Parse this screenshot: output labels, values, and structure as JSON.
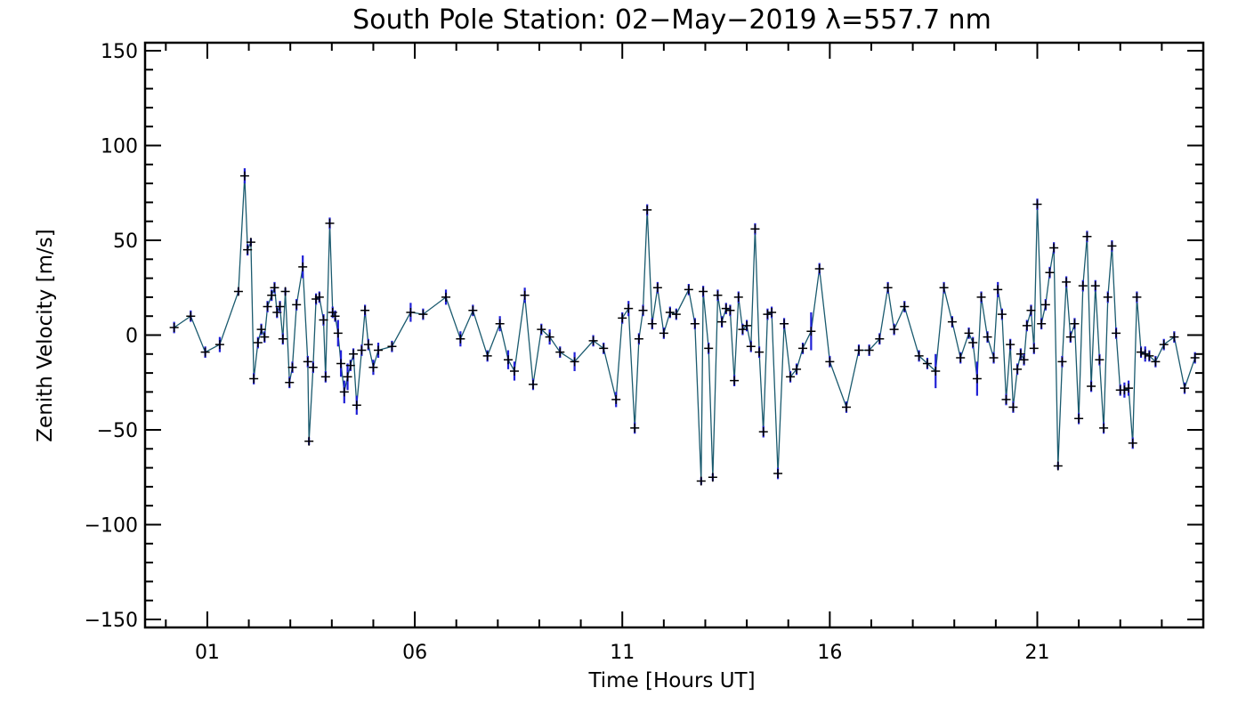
{
  "chart_data": {
    "type": "line",
    "title": "South Pole Station: 02−May−2019 λ=557.7 nm",
    "xlabel": "Time [Hours UT]",
    "ylabel": "Zenith Velocity [m/s]",
    "xlim": [
      -0.5,
      25.0
    ],
    "ylim": [
      -150,
      150
    ],
    "xtick_labels": [
      {
        "value": 1,
        "label": "01"
      },
      {
        "value": 6,
        "label": "06"
      },
      {
        "value": 11,
        "label": "11"
      },
      {
        "value": 16,
        "label": "16"
      },
      {
        "value": 21,
        "label": "21"
      }
    ],
    "ytick_labels": [
      {
        "value": 150,
        "label": "150"
      },
      {
        "value": 100,
        "label": "100"
      },
      {
        "value": 50,
        "label": "50"
      },
      {
        "value": 0,
        "label": "0"
      },
      {
        "value": -50,
        "label": "−50"
      },
      {
        "value": -100,
        "label": "−100"
      },
      {
        "value": -150,
        "label": "−150"
      }
    ],
    "series": [
      {
        "line_color": "#1a5a6e",
        "marker": "+",
        "errorbar_color": "#1f1fd6",
        "points": [
          {
            "x": 0.2,
            "y": 4,
            "err": 3
          },
          {
            "x": 0.6,
            "y": 10,
            "err": 3
          },
          {
            "x": 0.95,
            "y": -9,
            "err": 3
          },
          {
            "x": 1.3,
            "y": -5,
            "err": 4
          },
          {
            "x": 1.75,
            "y": 23,
            "err": 2
          },
          {
            "x": 1.9,
            "y": 84,
            "err": 4
          },
          {
            "x": 1.97,
            "y": 45,
            "err": 3
          },
          {
            "x": 2.05,
            "y": 49,
            "err": 2
          },
          {
            "x": 2.12,
            "y": -23,
            "err": 3
          },
          {
            "x": 2.22,
            "y": -4,
            "err": 3
          },
          {
            "x": 2.3,
            "y": 3,
            "err": 3
          },
          {
            "x": 2.38,
            "y": -1,
            "err": 3
          },
          {
            "x": 2.45,
            "y": 15,
            "err": 3
          },
          {
            "x": 2.55,
            "y": 21,
            "err": 3
          },
          {
            "x": 2.62,
            "y": 25,
            "err": 3
          },
          {
            "x": 2.68,
            "y": 12,
            "err": 3
          },
          {
            "x": 2.75,
            "y": 15,
            "err": 3
          },
          {
            "x": 2.82,
            "y": -2,
            "err": 3
          },
          {
            "x": 2.88,
            "y": 23,
            "err": 2
          },
          {
            "x": 2.98,
            "y": -25,
            "err": 3
          },
          {
            "x": 3.05,
            "y": -17,
            "err": 3
          },
          {
            "x": 3.15,
            "y": 16,
            "err": 3
          },
          {
            "x": 3.3,
            "y": 36,
            "err": 6
          },
          {
            "x": 3.42,
            "y": -14,
            "err": 3
          },
          {
            "x": 3.45,
            "y": -56,
            "err": 2
          },
          {
            "x": 3.55,
            "y": -17,
            "err": 3
          },
          {
            "x": 3.62,
            "y": 19,
            "err": 3
          },
          {
            "x": 3.7,
            "y": 20,
            "err": 3
          },
          {
            "x": 3.8,
            "y": 8,
            "err": 3
          },
          {
            "x": 3.85,
            "y": -22,
            "err": 3
          },
          {
            "x": 3.95,
            "y": 59,
            "err": 3
          },
          {
            "x": 4.02,
            "y": 12,
            "err": 3
          },
          {
            "x": 4.08,
            "y": 10,
            "err": 3
          },
          {
            "x": 4.15,
            "y": 1,
            "err": 7
          },
          {
            "x": 4.22,
            "y": -15,
            "err": 7
          },
          {
            "x": 4.3,
            "y": -30,
            "err": 6
          },
          {
            "x": 4.38,
            "y": -22,
            "err": 7
          },
          {
            "x": 4.45,
            "y": -16,
            "err": 3
          },
          {
            "x": 4.52,
            "y": -10,
            "err": 3
          },
          {
            "x": 4.6,
            "y": -37,
            "err": 5
          },
          {
            "x": 4.72,
            "y": -8,
            "err": 3
          },
          {
            "x": 4.8,
            "y": 13,
            "err": 3
          },
          {
            "x": 4.88,
            "y": -5,
            "err": 3
          },
          {
            "x": 5.0,
            "y": -17,
            "err": 4
          },
          {
            "x": 5.12,
            "y": -8,
            "err": 4
          },
          {
            "x": 5.45,
            "y": -6,
            "err": 3
          },
          {
            "x": 5.9,
            "y": 12,
            "err": 5
          },
          {
            "x": 6.2,
            "y": 11,
            "err": 3
          },
          {
            "x": 6.75,
            "y": 20,
            "err": 4
          },
          {
            "x": 7.1,
            "y": -2,
            "err": 4
          },
          {
            "x": 7.4,
            "y": 13,
            "err": 3
          },
          {
            "x": 7.75,
            "y": -11,
            "err": 3
          },
          {
            "x": 8.05,
            "y": 6,
            "err": 4
          },
          {
            "x": 8.25,
            "y": -13,
            "err": 5
          },
          {
            "x": 8.4,
            "y": -19,
            "err": 5
          },
          {
            "x": 8.65,
            "y": 21,
            "err": 4
          },
          {
            "x": 8.85,
            "y": -26,
            "err": 3
          },
          {
            "x": 9.05,
            "y": 3,
            "err": 3
          },
          {
            "x": 9.25,
            "y": -1,
            "err": 4
          },
          {
            "x": 9.5,
            "y": -9,
            "err": 3
          },
          {
            "x": 9.85,
            "y": -14,
            "err": 5
          },
          {
            "x": 10.3,
            "y": -3,
            "err": 3
          },
          {
            "x": 10.55,
            "y": -7,
            "err": 3
          },
          {
            "x": 10.85,
            "y": -34,
            "err": 4
          },
          {
            "x": 11.0,
            "y": 9,
            "err": 3
          },
          {
            "x": 11.15,
            "y": 14,
            "err": 4
          },
          {
            "x": 11.3,
            "y": -49,
            "err": 3
          },
          {
            "x": 11.4,
            "y": -2,
            "err": 3
          },
          {
            "x": 11.5,
            "y": 13,
            "err": 3
          },
          {
            "x": 11.6,
            "y": 66,
            "err": 3
          },
          {
            "x": 11.72,
            "y": 6,
            "err": 3
          },
          {
            "x": 11.85,
            "y": 25,
            "err": 3
          },
          {
            "x": 12.0,
            "y": 1,
            "err": 3
          },
          {
            "x": 12.15,
            "y": 12,
            "err": 3
          },
          {
            "x": 12.3,
            "y": 11,
            "err": 3
          },
          {
            "x": 12.6,
            "y": 24,
            "err": 3
          },
          {
            "x": 12.75,
            "y": 6,
            "err": 3
          },
          {
            "x": 12.9,
            "y": -77,
            "err": 2
          },
          {
            "x": 12.95,
            "y": 23,
            "err": 3
          },
          {
            "x": 13.08,
            "y": -7,
            "err": 3
          },
          {
            "x": 13.18,
            "y": -75,
            "err": 2
          },
          {
            "x": 13.3,
            "y": 21,
            "err": 3
          },
          {
            "x": 13.4,
            "y": 7,
            "err": 3
          },
          {
            "x": 13.5,
            "y": 14,
            "err": 3
          },
          {
            "x": 13.6,
            "y": 13,
            "err": 3
          },
          {
            "x": 13.7,
            "y": -24,
            "err": 3
          },
          {
            "x": 13.8,
            "y": 20,
            "err": 3
          },
          {
            "x": 13.9,
            "y": 3,
            "err": 3
          },
          {
            "x": 14.0,
            "y": 5,
            "err": 3
          },
          {
            "x": 14.1,
            "y": -6,
            "err": 3
          },
          {
            "x": 14.2,
            "y": 56,
            "err": 3
          },
          {
            "x": 14.3,
            "y": -9,
            "err": 3
          },
          {
            "x": 14.4,
            "y": -51,
            "err": 3
          },
          {
            "x": 14.5,
            "y": 11,
            "err": 3
          },
          {
            "x": 14.6,
            "y": 12,
            "err": 3
          },
          {
            "x": 14.75,
            "y": -73,
            "err": 3
          },
          {
            "x": 14.9,
            "y": 6,
            "err": 3
          },
          {
            "x": 15.05,
            "y": -22,
            "err": 3
          },
          {
            "x": 15.2,
            "y": -18,
            "err": 3
          },
          {
            "x": 15.35,
            "y": -7,
            "err": 3
          },
          {
            "x": 15.55,
            "y": 2,
            "err": 10
          },
          {
            "x": 15.75,
            "y": 35,
            "err": 3
          },
          {
            "x": 16.0,
            "y": -14,
            "err": 3
          },
          {
            "x": 16.4,
            "y": -38,
            "err": 3
          },
          {
            "x": 16.7,
            "y": -8,
            "err": 3
          },
          {
            "x": 16.95,
            "y": -8,
            "err": 3
          },
          {
            "x": 17.2,
            "y": -2,
            "err": 3
          },
          {
            "x": 17.4,
            "y": 25,
            "err": 3
          },
          {
            "x": 17.55,
            "y": 3,
            "err": 3
          },
          {
            "x": 17.8,
            "y": 15,
            "err": 3
          },
          {
            "x": 18.15,
            "y": -11,
            "err": 3
          },
          {
            "x": 18.35,
            "y": -15,
            "err": 3
          },
          {
            "x": 18.55,
            "y": -19,
            "err": 9
          },
          {
            "x": 18.75,
            "y": 25,
            "err": 3
          },
          {
            "x": 18.95,
            "y": 7,
            "err": 3
          },
          {
            "x": 19.15,
            "y": -12,
            "err": 3
          },
          {
            "x": 19.35,
            "y": 1,
            "err": 3
          },
          {
            "x": 19.45,
            "y": -4,
            "err": 3
          },
          {
            "x": 19.55,
            "y": -23,
            "err": 9
          },
          {
            "x": 19.65,
            "y": 20,
            "err": 3
          },
          {
            "x": 19.8,
            "y": -1,
            "err": 3
          },
          {
            "x": 19.95,
            "y": -12,
            "err": 3
          },
          {
            "x": 20.05,
            "y": 24,
            "err": 4
          },
          {
            "x": 20.15,
            "y": 11,
            "err": 3
          },
          {
            "x": 20.25,
            "y": -34,
            "err": 3
          },
          {
            "x": 20.35,
            "y": -5,
            "err": 3
          },
          {
            "x": 20.42,
            "y": -38,
            "err": 3
          },
          {
            "x": 20.52,
            "y": -18,
            "err": 3
          },
          {
            "x": 20.6,
            "y": -10,
            "err": 3
          },
          {
            "x": 20.68,
            "y": -13,
            "err": 3
          },
          {
            "x": 20.75,
            "y": 5,
            "err": 3
          },
          {
            "x": 20.85,
            "y": 13,
            "err": 3
          },
          {
            "x": 20.92,
            "y": -7,
            "err": 3
          },
          {
            "x": 21.0,
            "y": 69,
            "err": 3
          },
          {
            "x": 21.1,
            "y": 6,
            "err": 3
          },
          {
            "x": 21.2,
            "y": 16,
            "err": 3
          },
          {
            "x": 21.3,
            "y": 33,
            "err": 3
          },
          {
            "x": 21.4,
            "y": 46,
            "err": 3
          },
          {
            "x": 21.5,
            "y": -69,
            "err": 2
          },
          {
            "x": 21.6,
            "y": -14,
            "err": 3
          },
          {
            "x": 21.7,
            "y": 28,
            "err": 3
          },
          {
            "x": 21.8,
            "y": -1,
            "err": 3
          },
          {
            "x": 21.9,
            "y": 6,
            "err": 3
          },
          {
            "x": 22.0,
            "y": -44,
            "err": 3
          },
          {
            "x": 22.1,
            "y": 26,
            "err": 3
          },
          {
            "x": 22.2,
            "y": 52,
            "err": 3
          },
          {
            "x": 22.3,
            "y": -27,
            "err": 3
          },
          {
            "x": 22.4,
            "y": 26,
            "err": 3
          },
          {
            "x": 22.5,
            "y": -13,
            "err": 3
          },
          {
            "x": 22.6,
            "y": -49,
            "err": 3
          },
          {
            "x": 22.7,
            "y": 20,
            "err": 3
          },
          {
            "x": 22.8,
            "y": 47,
            "err": 3
          },
          {
            "x": 22.9,
            "y": 1,
            "err": 3
          },
          {
            "x": 23.0,
            "y": -29,
            "err": 3
          },
          {
            "x": 23.1,
            "y": -29,
            "err": 4
          },
          {
            "x": 23.2,
            "y": -28,
            "err": 4
          },
          {
            "x": 23.3,
            "y": -57,
            "err": 3
          },
          {
            "x": 23.4,
            "y": 20,
            "err": 3
          },
          {
            "x": 23.5,
            "y": -9,
            "err": 3
          },
          {
            "x": 23.6,
            "y": -10,
            "err": 4
          },
          {
            "x": 23.7,
            "y": -11,
            "err": 3
          },
          {
            "x": 23.85,
            "y": -14,
            "err": 3
          },
          {
            "x": 24.05,
            "y": -5,
            "err": 3
          },
          {
            "x": 24.3,
            "y": -1,
            "err": 3
          },
          {
            "x": 24.55,
            "y": -28,
            "err": 3
          },
          {
            "x": 24.8,
            "y": -12,
            "err": 3
          }
        ]
      }
    ]
  }
}
